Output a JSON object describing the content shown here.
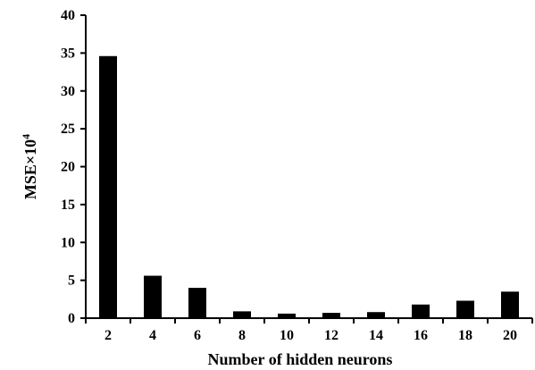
{
  "chart_data": {
    "type": "bar",
    "categories": [
      "2",
      "4",
      "6",
      "8",
      "10",
      "12",
      "14",
      "16",
      "18",
      "20"
    ],
    "values": [
      34.6,
      5.6,
      4.0,
      0.9,
      0.6,
      0.7,
      0.8,
      1.8,
      2.3,
      3.5
    ],
    "xlabel": "Number of hidden neurons",
    "ylabel": "MSE×10",
    "ylabel_superscript": "4",
    "ylim": [
      0,
      40
    ],
    "yticks": [
      "0",
      "5",
      "10",
      "15",
      "20",
      "25",
      "30",
      "35",
      "40"
    ],
    "grid": false,
    "legend": "none",
    "bar_color": "#000000"
  }
}
